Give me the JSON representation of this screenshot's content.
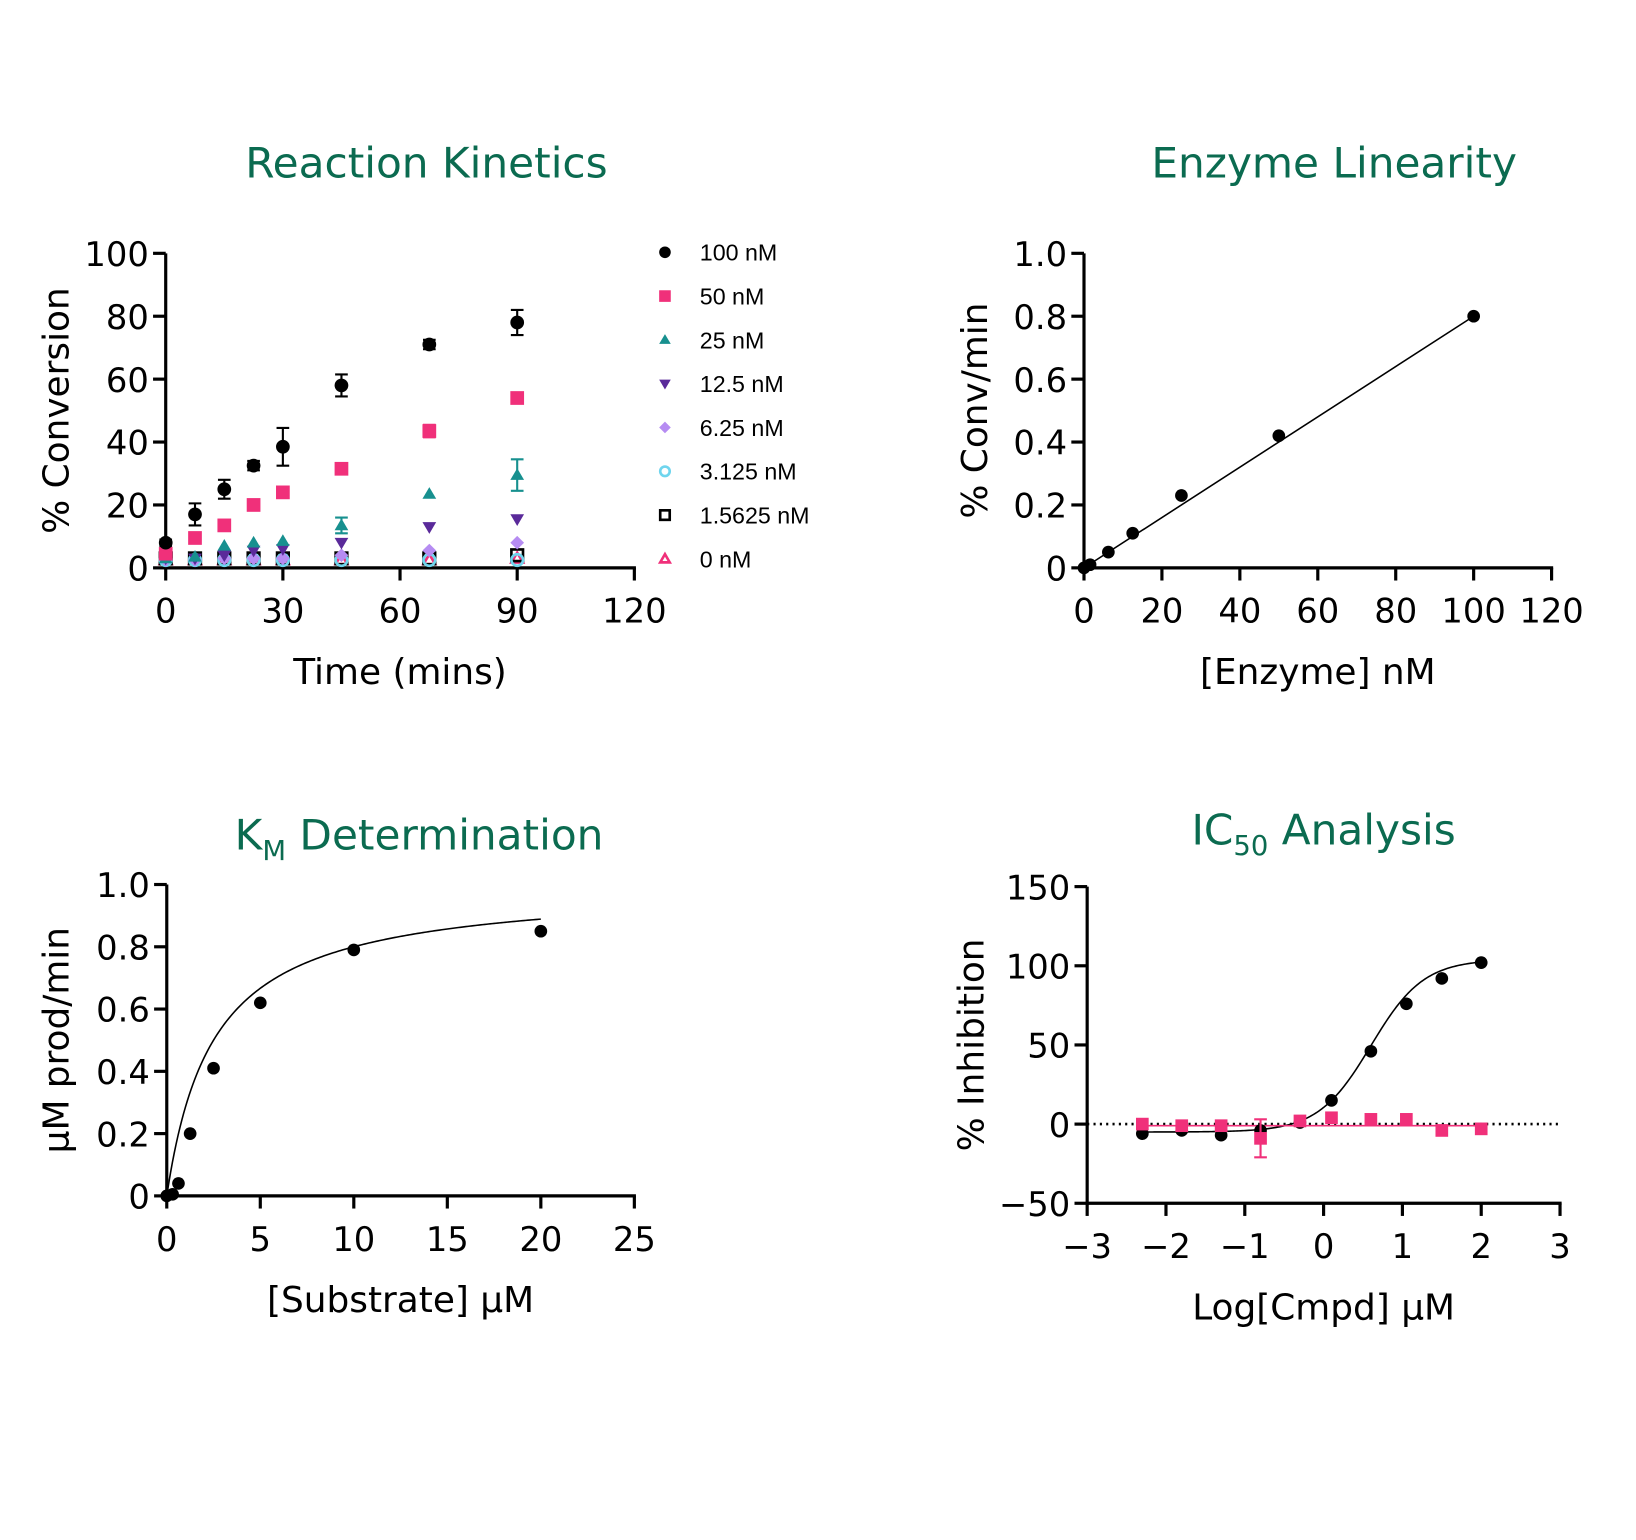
{
  "chart_data": [
    {
      "type": "scatter",
      "title": "Reaction Kinetics",
      "xlabel": "Time (mins)",
      "ylabel": "% Conversion",
      "xlim": [
        0,
        120
      ],
      "ylim": [
        0,
        100
      ],
      "xticks": [
        "0",
        "30",
        "60",
        "90",
        "120"
      ],
      "yticks": [
        "0",
        "20",
        "40",
        "60",
        "80",
        "100"
      ],
      "legend_position": "right",
      "x": [
        0,
        7.5,
        15,
        22.5,
        30,
        45,
        67.5,
        90
      ],
      "series": [
        {
          "name": "100 nM",
          "marker": "circle",
          "color": "#000000",
          "values": [
            8,
            17,
            25,
            32.5,
            38.5,
            58,
            71,
            78
          ],
          "errors": [
            1,
            3.5,
            3,
            1.5,
            6,
            3.5,
            1.5,
            4
          ]
        },
        {
          "name": "50 nM",
          "marker": "square",
          "color": "#f0307a",
          "values": [
            4.5,
            9.5,
            13.5,
            20,
            24,
            31.5,
            43.5,
            54
          ],
          "errors": [
            0,
            0,
            0,
            0,
            0,
            0,
            2,
            0
          ]
        },
        {
          "name": "25 nM",
          "marker": "triangle",
          "color": "#17908f",
          "values": [
            3,
            3.5,
            7,
            8,
            8.5,
            13.5,
            23.5,
            29.5
          ],
          "errors": [
            0,
            0,
            0,
            0,
            0,
            2.5,
            0,
            5
          ]
        },
        {
          "name": "12.5 nM",
          "marker": "triangle-down",
          "color": "#5a2a9a",
          "values": [
            3,
            3,
            4,
            5.5,
            6,
            8,
            13,
            15.5
          ]
        },
        {
          "name": "6.25 nM",
          "marker": "diamond",
          "color": "#b68cf2",
          "values": [
            2.5,
            2.5,
            3,
            3,
            3,
            4,
            5.5,
            8
          ]
        },
        {
          "name": "3.125 nM",
          "marker": "open-circle",
          "color": "#6fd5ee",
          "values": [
            2.5,
            2.5,
            2.5,
            2.5,
            2.5,
            2.5,
            2.5,
            2.5
          ]
        },
        {
          "name": "1.5625 nM",
          "marker": "open-square",
          "color": "#000000",
          "values": [
            3,
            3,
            3,
            3,
            3,
            3,
            3,
            4
          ]
        },
        {
          "name": "0 nM",
          "marker": "open-triangle",
          "color": "#f0307a",
          "values": [
            2.5,
            2.5,
            2.5,
            2.5,
            2.5,
            2.5,
            2.5,
            3
          ]
        }
      ]
    },
    {
      "type": "scatter",
      "title": "Enzyme Linearity",
      "xlabel": "[Enzyme] nM",
      "ylabel": "% Conv/min",
      "xlim": [
        0,
        120
      ],
      "ylim": [
        0,
        1.0
      ],
      "xticks": [
        "0",
        "20",
        "40",
        "60",
        "80",
        "100",
        "120"
      ],
      "yticks": [
        "0",
        "0.2",
        "0.4",
        "0.6",
        "0.8",
        "1.0"
      ],
      "x": [
        0,
        1.5625,
        6.25,
        12.5,
        25,
        50,
        100
      ],
      "values": [
        0,
        0.01,
        0.05,
        0.11,
        0.23,
        0.42,
        0.8
      ],
      "fit": "linear"
    },
    {
      "type": "scatter",
      "title": "K",
      "title_sub": "M",
      "title_rest": " Determination",
      "xlabel": "[Substrate] µM",
      "ylabel": "µM prod/min",
      "xlim": [
        0,
        25
      ],
      "ylim": [
        0,
        1.0
      ],
      "xticks": [
        "0",
        "5",
        "10",
        "15",
        "20",
        "25"
      ],
      "yticks": [
        "0",
        "0.2",
        "0.4",
        "0.6",
        "0.8",
        "1.0"
      ],
      "x": [
        0,
        0.3125,
        0.625,
        1.25,
        2.5,
        5,
        10,
        20
      ],
      "values": [
        0,
        0.005,
        0.04,
        0.2,
        0.41,
        0.62,
        0.79,
        0.85
      ],
      "fit": {
        "model": "michaelis-menten",
        "vmax": 1.0,
        "km": 2.5
      }
    },
    {
      "type": "scatter",
      "title": "IC",
      "title_sub": "50",
      "title_rest": " Analysis",
      "xlabel": "Log[Cmpd] µM",
      "ylabel": "% Inhibition",
      "xlim": [
        -3,
        3
      ],
      "ylim": [
        -50,
        150
      ],
      "xticks": [
        "−3",
        "−2",
        "−1",
        "0",
        "1",
        "2",
        "3"
      ],
      "yticks": [
        "−50",
        "0",
        "50",
        "100",
        "150"
      ],
      "x": [
        -2.3,
        -1.8,
        -1.3,
        -0.8,
        -0.3,
        0.1,
        0.6,
        1.05,
        1.5,
        2.0
      ],
      "series": [
        {
          "marker": "circle",
          "color": "#000000",
          "values": [
            -6,
            -4,
            -7,
            -4,
            1,
            15,
            46,
            76,
            92,
            102
          ],
          "fit": {
            "bottom": -5,
            "top": 104,
            "logic50": 0.6,
            "hill": 1.3
          }
        },
        {
          "marker": "square",
          "color": "#f0307a",
          "values": [
            0,
            -1,
            -1,
            -9,
            2,
            4,
            3,
            3,
            -4,
            -3
          ],
          "errors": [
            0,
            0,
            0,
            12,
            0,
            0,
            0,
            0,
            0,
            0
          ]
        }
      ],
      "reference_line": 0
    }
  ]
}
